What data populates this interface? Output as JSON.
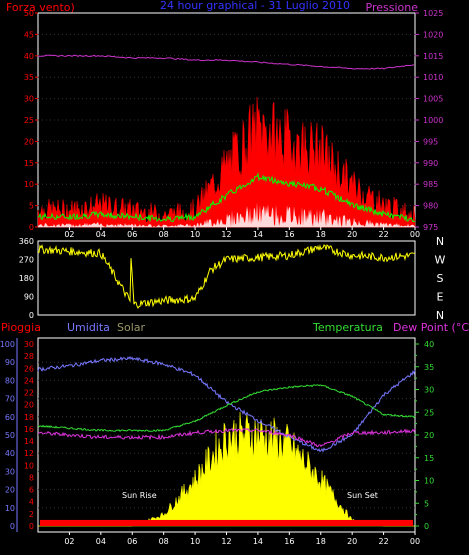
{
  "title": "24 hour graphical - 31 Luglio 2010",
  "top_panel": {
    "left_label": "Forza vento)",
    "right_label": "Pressione",
    "left_ticks": [
      "50",
      "45",
      "40",
      "35",
      "30",
      "25",
      "20",
      "15",
      "10",
      "5",
      "0"
    ],
    "right_ticks": [
      "1025",
      "1020",
      "1015",
      "1010",
      "1005",
      "1000",
      "995",
      "990",
      "985",
      "980",
      "975"
    ]
  },
  "mid_panel": {
    "left_ticks": [
      "360",
      "270",
      "180",
      "90",
      "0"
    ],
    "right_letters": [
      "N",
      "W",
      "S",
      "E",
      "N"
    ]
  },
  "bottom_panel": {
    "labels": {
      "pioggia": "Pioggia",
      "umidita": "Umidita",
      "solar": "Solar",
      "temperatura": "Temperatura",
      "dewpoint": "Dew Point (°C)",
      "sunrise": "Sun Rise",
      "sunset": "Sun Set"
    },
    "humidity_ticks": [
      "100",
      "90",
      "80",
      "70",
      "60",
      "50",
      "40",
      "30",
      "20",
      "10",
      "0"
    ],
    "rain_ticks": [
      "30",
      "28",
      "26",
      "24",
      "22",
      "20",
      "18",
      "16",
      "14",
      "12",
      "10",
      "8",
      "6",
      "4",
      "2",
      "0"
    ],
    "temp_ticks": [
      "40",
      "35",
      "30",
      "25",
      "20",
      "15",
      "10",
      "5",
      "0"
    ]
  },
  "x_ticks": [
    "02",
    "04",
    "06",
    "08",
    "10",
    "12",
    "14",
    "16",
    "18",
    "20",
    "22",
    "00"
  ],
  "colors": {
    "wind_gust": "#ff0000",
    "wind_avg": "#00ff00",
    "wind_low": "#ffffff",
    "pressure": "#cc33cc",
    "direction": "#ffff00",
    "humidity": "#7777ff",
    "temperature": "#33dd33",
    "dewpoint": "#dd33dd",
    "solar": "#ffff00",
    "rain": "#ff0000",
    "frame": "#ffffff"
  },
  "chart_data": [
    {
      "type": "line",
      "title": "",
      "x": [
        "00",
        "02",
        "04",
        "06",
        "08",
        "10",
        "12",
        "14",
        "16",
        "18",
        "20",
        "22",
        "00"
      ],
      "series": [
        {
          "name": "Forza vento)",
          "axis": "left",
          "values": [
            3,
            3,
            4,
            3,
            2,
            3,
            12,
            20,
            17,
            15,
            8,
            4,
            2
          ]
        },
        {
          "name": "Pressione",
          "axis": "right",
          "values": [
            1015,
            1015,
            1015,
            1014.5,
            1014.5,
            1014,
            1014,
            1013.5,
            1013,
            1012.5,
            1012,
            1012,
            1013
          ]
        }
      ],
      "ylim_left": [
        0,
        50
      ],
      "ylim_right": [
        975,
        1025
      ]
    },
    {
      "type": "line",
      "title": "",
      "x": [
        "00",
        "02",
        "04",
        "06",
        "08",
        "10",
        "11",
        "12",
        "14",
        "16",
        "18",
        "20",
        "22",
        "00"
      ],
      "series": [
        {
          "name": "",
          "values": [
            320,
            310,
            300,
            50,
            70,
            80,
            220,
            270,
            280,
            290,
            330,
            290,
            280,
            290
          ]
        }
      ],
      "ylim": [
        0,
        360
      ]
    },
    {
      "type": "area",
      "title": "",
      "x": [
        "00",
        "02",
        "04",
        "06",
        "08",
        "10",
        "12",
        "14",
        "16",
        "18",
        "20",
        "22",
        "00"
      ],
      "series": [
        {
          "name": "Umidita",
          "axis": "humidity",
          "values": [
            86,
            88,
            91,
            92,
            89,
            83,
            68,
            58,
            49,
            41,
            50,
            72,
            85
          ]
        },
        {
          "name": "Temperatura",
          "axis": "temp",
          "values": [
            22,
            21.5,
            21,
            21,
            21,
            23,
            26.5,
            29.5,
            30.5,
            31,
            28.5,
            24.5,
            24
          ]
        },
        {
          "name": "Dew Point (°C)",
          "axis": "temp",
          "values": [
            20.5,
            20,
            19.5,
            19.5,
            19.5,
            20.5,
            21,
            21,
            20,
            17.5,
            20.5,
            20.5,
            21
          ]
        },
        {
          "name": "Solar",
          "axis": "rain",
          "values": [
            0,
            0,
            0,
            0,
            2,
            8,
            15.5,
            16,
            14,
            8,
            1,
            0,
            0
          ]
        },
        {
          "name": "Pioggia",
          "axis": "rain",
          "values": [
            1,
            1,
            1,
            1,
            1,
            1,
            1,
            1,
            1,
            1,
            1,
            1,
            1
          ]
        }
      ],
      "ylim_humidity": [
        0,
        100
      ],
      "ylim_rain": [
        0,
        30
      ],
      "ylim_temp": [
        0,
        40
      ]
    }
  ]
}
